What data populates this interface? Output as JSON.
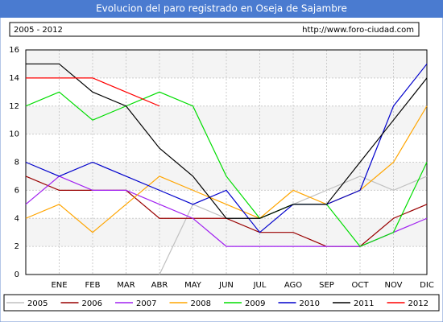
{
  "chart_data": {
    "type": "line",
    "title": "Evolucion del paro registrado en Oseja de Sajambre",
    "subtitle": "2005 - 2012",
    "source": "http://www.foro-ciudad.com",
    "categories": [
      null,
      "ENE",
      "FEB",
      "MAR",
      "ABR",
      "MAY",
      "JUN",
      "JUL",
      "AGO",
      "SEP",
      "OCT",
      "NOV",
      "DIC"
    ],
    "series": [
      {
        "name": "2005",
        "color": "#c0c0c0",
        "values": [
          null,
          null,
          null,
          null,
          0,
          5,
          4,
          4,
          5,
          6,
          7,
          6,
          7
        ]
      },
      {
        "name": "2006",
        "color": "#990000",
        "values": [
          7,
          6,
          6,
          6,
          4,
          4,
          4,
          3,
          3,
          2,
          2,
          4,
          5
        ]
      },
      {
        "name": "2007",
        "color": "#a020f0",
        "values": [
          5,
          7,
          6,
          6,
          5,
          4,
          2,
          2,
          2,
          2,
          2,
          3,
          4
        ]
      },
      {
        "name": "2008",
        "color": "#ffa500",
        "values": [
          4,
          5,
          3,
          5,
          7,
          6,
          5,
          4,
          6,
          5,
          6,
          8,
          12
        ]
      },
      {
        "name": "2009",
        "color": "#00dd00",
        "values": [
          12,
          13,
          11,
          12,
          13,
          12,
          7,
          4,
          5,
          5,
          2,
          3,
          8
        ]
      },
      {
        "name": "2010",
        "color": "#0000cc",
        "values": [
          8,
          7,
          8,
          7,
          6,
          5,
          6,
          3,
          5,
          5,
          6,
          12,
          15
        ]
      },
      {
        "name": "2011",
        "color": "#000000",
        "values": [
          15,
          15,
          13,
          12,
          9,
          7,
          4,
          4,
          5,
          5,
          8,
          11,
          14
        ]
      },
      {
        "name": "2012",
        "color": "#ff0000",
        "values": [
          14,
          14,
          14,
          13,
          12,
          null,
          null,
          null,
          null,
          null,
          null,
          null,
          null
        ]
      }
    ],
    "ylim": [
      0,
      16
    ],
    "yticks": [
      0,
      2,
      4,
      6,
      8,
      10,
      12,
      14,
      16
    ],
    "grid": true,
    "legend": "bottom"
  }
}
